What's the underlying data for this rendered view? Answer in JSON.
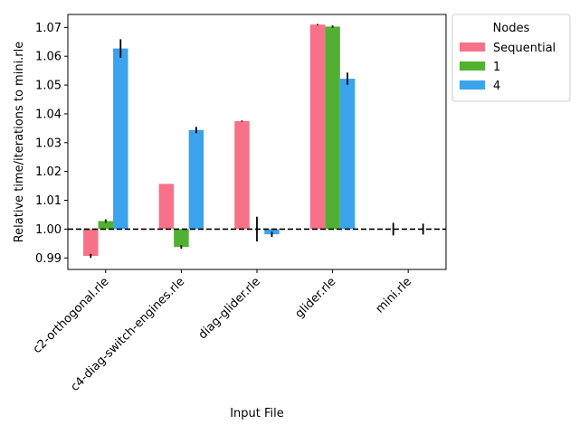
{
  "chart_data": {
    "type": "bar",
    "title": "",
    "xlabel": "Input File",
    "ylabel": "Relative time/iterations to mini.rle",
    "categories": [
      "c2-orthogonal.rle",
      "c4-diag-switch-engines.rle",
      "diag-glider.rle",
      "glider.rle",
      "mini.rle"
    ],
    "ylim": [
      0.986,
      1.0745
    ],
    "yticks": [
      0.99,
      1.0,
      1.01,
      1.02,
      1.03,
      1.04,
      1.05,
      1.06,
      1.07
    ],
    "ytick_labels": [
      "0.99",
      "1.00",
      "1.01",
      "1.02",
      "1.03",
      "1.04",
      "1.05",
      "1.06",
      "1.07"
    ],
    "baseline": 1.0,
    "reference_line": 1.0,
    "legend": {
      "title": "Nodes",
      "placement": "upper-right-outside"
    },
    "series": [
      {
        "name": "Sequential",
        "color": "#f77189",
        "values": [
          0.9907,
          1.0157,
          1.0375,
          1.071,
          1.0
        ],
        "errors": [
          0.0007,
          0.0,
          0.0002,
          0.0002,
          0.0022
        ]
      },
      {
        "name": "1",
        "color": "#50b131",
        "values": [
          1.0028,
          0.9938,
          1.0,
          1.0703,
          1.0
        ],
        "errors": [
          0.0006,
          0.0006,
          0.0043,
          0.0004,
          0.0
        ]
      },
      {
        "name": "4",
        "color": "#3ba3ec",
        "values": [
          1.0627,
          1.0344,
          0.9982,
          1.0522,
          1.0
        ],
        "errors": [
          0.0032,
          0.0011,
          0.0009,
          0.0021,
          0.0019
        ]
      }
    ]
  }
}
